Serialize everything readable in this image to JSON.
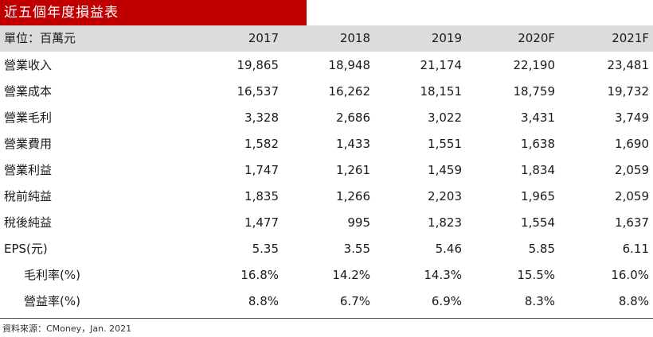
{
  "title": "近五個年度損益表",
  "header": {
    "unit_label": "單位：百萬元",
    "years": [
      "2017",
      "2018",
      "2019",
      "2020F",
      "2021F"
    ]
  },
  "rows": [
    {
      "label": "營業收入",
      "values": [
        "19,865",
        "18,948",
        "21,174",
        "22,190",
        "23,481"
      ]
    },
    {
      "label": "營業成本",
      "values": [
        "16,537",
        "16,262",
        "18,151",
        "18,759",
        "19,732"
      ]
    },
    {
      "label": "營業毛利",
      "values": [
        "3,328",
        "2,686",
        "3,022",
        "3,431",
        "3,749"
      ]
    },
    {
      "label": "營業費用",
      "values": [
        "1,582",
        "1,433",
        "1,551",
        "1,638",
        "1,690"
      ]
    },
    {
      "label": "營業利益",
      "values": [
        "1,747",
        "1,261",
        "1,459",
        "1,834",
        "2,059"
      ]
    },
    {
      "label": "稅前純益",
      "values": [
        "1,835",
        "1,266",
        "2,203",
        "1,965",
        "2,059"
      ]
    },
    {
      "label": "稅後純益",
      "values": [
        "1,477",
        "995",
        "1,823",
        "1,554",
        "1,637"
      ]
    },
    {
      "label": "EPS(元)",
      "values": [
        "5.35",
        "3.55",
        "5.46",
        "5.85",
        "6.11"
      ]
    },
    {
      "label": "毛利率(%)",
      "values": [
        "16.8%",
        "14.2%",
        "14.3%",
        "15.5%",
        "16.0%"
      ]
    },
    {
      "label": "營益率(%)",
      "values": [
        "8.8%",
        "6.7%",
        "6.9%",
        "8.3%",
        "8.8%"
      ]
    }
  ],
  "source": "資料來源：CMoney，Jan. 2021",
  "colors": {
    "title_bg": "#c00000",
    "header_bg": "#dcdcdc"
  }
}
